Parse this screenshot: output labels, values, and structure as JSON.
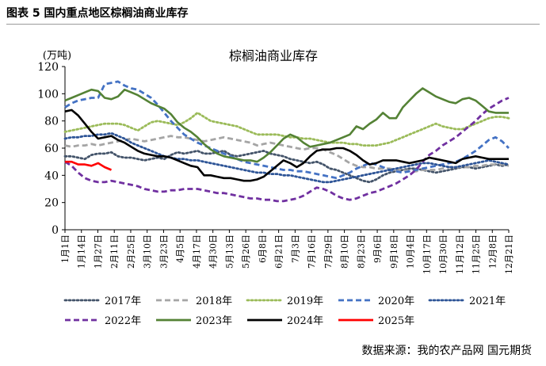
{
  "figure": {
    "label": "图表 5 国内重点地区棕榈油商业库存",
    "source": "数据来源：我的农产品网 国元期货"
  },
  "chart_data": {
    "type": "line",
    "title": "棕榈油商业库存",
    "ylabel": "(万吨)",
    "ylim": [
      0,
      120
    ],
    "yticks": [
      0,
      20,
      40,
      60,
      80,
      100,
      120
    ],
    "x_tick_labels": [
      "1月1日",
      "1月14日",
      "1月27日",
      "2月11日",
      "2月25日",
      "3月10日",
      "3月23日",
      "4月5日",
      "4月17日",
      "4月30日",
      "5月13日",
      "5月26日",
      "6月8日",
      "6月21日",
      "7月3日",
      "7月16日",
      "7月29日",
      "8月10日",
      "8月23日",
      "9月6日",
      "9月18日",
      "10月4日",
      "10月17日",
      "10月30日",
      "11月12日",
      "11月25日",
      "12月8日",
      "12月21日"
    ],
    "grid": false,
    "legend_position": "bottom",
    "series": [
      {
        "name": "2017年",
        "color": "#44546a",
        "dash": "dot",
        "values": [
          54,
          54,
          53,
          52,
          55,
          56,
          56,
          57,
          54,
          53,
          53,
          52,
          51,
          52,
          53,
          52,
          55,
          57,
          56,
          57,
          58,
          56,
          56,
          57,
          58,
          55,
          54,
          55,
          56,
          57,
          58,
          56,
          55,
          54,
          52,
          51,
          50,
          49,
          50,
          48,
          45,
          44,
          42,
          40,
          38,
          36,
          35,
          37,
          40,
          42,
          43,
          44,
          45,
          45,
          44,
          43,
          42,
          43,
          44,
          45,
          46,
          46,
          45,
          46,
          47,
          48,
          47,
          48
        ]
      },
      {
        "name": "2018年",
        "color": "#a5a5a5",
        "dash": "dash",
        "values": [
          62,
          61,
          62,
          62,
          63,
          62,
          63,
          64,
          65,
          66,
          67,
          66,
          65,
          66,
          67,
          68,
          69,
          68,
          68,
          67,
          66,
          65,
          66,
          67,
          68,
          67,
          66,
          65,
          64,
          62,
          63,
          64,
          63,
          62,
          61,
          60,
          59,
          60,
          60,
          59,
          57,
          55,
          52,
          49,
          47,
          46,
          46,
          45,
          45,
          45,
          44,
          44,
          43,
          43,
          44,
          44,
          44,
          45,
          46,
          46,
          46,
          46,
          47,
          47,
          48,
          48,
          48,
          47
        ]
      },
      {
        "name": "2019年",
        "color": "#9bbb59",
        "dash": "dot",
        "values": [
          72,
          73,
          74,
          75,
          76,
          77,
          78,
          78,
          78,
          77,
          75,
          73,
          76,
          79,
          80,
          79,
          78,
          77,
          79,
          82,
          86,
          83,
          80,
          79,
          78,
          77,
          76,
          74,
          72,
          70,
          70,
          70,
          70,
          69,
          68,
          68,
          67,
          67,
          66,
          65,
          64,
          64,
          64,
          63,
          63,
          62,
          62,
          62,
          63,
          64,
          66,
          68,
          70,
          72,
          74,
          76,
          78,
          76,
          75,
          74,
          74,
          76,
          78,
          80,
          82,
          83,
          83,
          82
        ]
      },
      {
        "name": "2020年",
        "color": "#4472c4",
        "dash": "dash",
        "values": [
          90,
          93,
          95,
          96,
          97,
          97,
          107,
          108,
          109,
          106,
          104,
          103,
          100,
          97,
          92,
          86,
          80,
          75,
          70,
          67,
          64,
          62,
          60,
          58,
          56,
          54,
          52,
          50,
          49,
          48,
          47,
          46,
          45,
          44,
          44,
          43,
          43,
          42,
          41,
          40,
          39,
          38,
          40,
          42,
          45,
          47,
          49,
          48,
          46,
          44,
          43,
          42,
          43,
          44,
          45,
          46,
          47,
          48,
          49,
          50,
          52,
          55,
          58,
          62,
          66,
          68,
          65,
          60
        ]
      },
      {
        "name": "2021年",
        "color": "#2e5597",
        "dash": "dot",
        "values": [
          67,
          68,
          68,
          69,
          69,
          70,
          70,
          71,
          69,
          67,
          64,
          62,
          60,
          58,
          56,
          54,
          53,
          52,
          52,
          51,
          51,
          50,
          49,
          48,
          47,
          46,
          45,
          44,
          43,
          42,
          42,
          41,
          41,
          40,
          40,
          39,
          38,
          37,
          36,
          35,
          35,
          36,
          37,
          38,
          39,
          40,
          41,
          42,
          43,
          44,
          45,
          46,
          47,
          48,
          49,
          49,
          48,
          47,
          46,
          46,
          47,
          48,
          49,
          50,
          51,
          50,
          49,
          48
        ]
      },
      {
        "name": "2022年",
        "color": "#7030a0",
        "dash": "dash",
        "values": [
          50,
          47,
          42,
          38,
          36,
          35,
          35,
          36,
          35,
          34,
          33,
          32,
          30,
          29,
          28,
          28,
          29,
          29,
          30,
          30,
          30,
          29,
          28,
          27,
          27,
          26,
          25,
          24,
          23,
          23,
          22,
          22,
          21,
          21,
          22,
          23,
          25,
          28,
          31,
          30,
          28,
          25,
          23,
          22,
          23,
          25,
          27,
          28,
          30,
          32,
          34,
          37,
          40,
          44,
          50,
          55,
          58,
          62,
          65,
          68,
          72,
          76,
          80,
          85,
          89,
          92,
          95,
          97
        ]
      },
      {
        "name": "2023年",
        "color": "#548235",
        "dash": "solid",
        "values": [
          95,
          97,
          99,
          101,
          103,
          102,
          97,
          96,
          98,
          103,
          101,
          99,
          96,
          93,
          91,
          89,
          85,
          79,
          75,
          72,
          68,
          63,
          59,
          56,
          54,
          53,
          52,
          51,
          51,
          50,
          53,
          57,
          62,
          67,
          70,
          68,
          64,
          61,
          62,
          63,
          64,
          66,
          68,
          70,
          76,
          74,
          78,
          81,
          86,
          82,
          82,
          90,
          95,
          100,
          104,
          101,
          98,
          96,
          94,
          93,
          96,
          97,
          95,
          91,
          87,
          86,
          86,
          86
        ]
      },
      {
        "name": "2024年",
        "color": "#000000",
        "dash": "solid",
        "values": [
          87,
          88,
          84,
          78,
          72,
          67,
          68,
          69,
          66,
          64,
          61,
          58,
          56,
          55,
          54,
          54,
          53,
          51,
          49,
          47,
          46,
          40,
          40,
          39,
          38,
          38,
          37,
          36,
          36,
          37,
          39,
          43,
          47,
          51,
          49,
          46,
          49,
          54,
          58,
          59,
          59,
          60,
          60,
          58,
          55,
          51,
          48,
          49,
          51,
          51,
          51,
          50,
          49,
          50,
          51,
          53,
          52,
          51,
          50,
          49,
          52,
          53,
          54,
          53,
          52,
          52,
          52,
          52
        ]
      },
      {
        "name": "2025年",
        "color": "#ff0000",
        "dash": "solid",
        "values": [
          50,
          50,
          48,
          48,
          47,
          49,
          46,
          44
        ]
      }
    ]
  }
}
